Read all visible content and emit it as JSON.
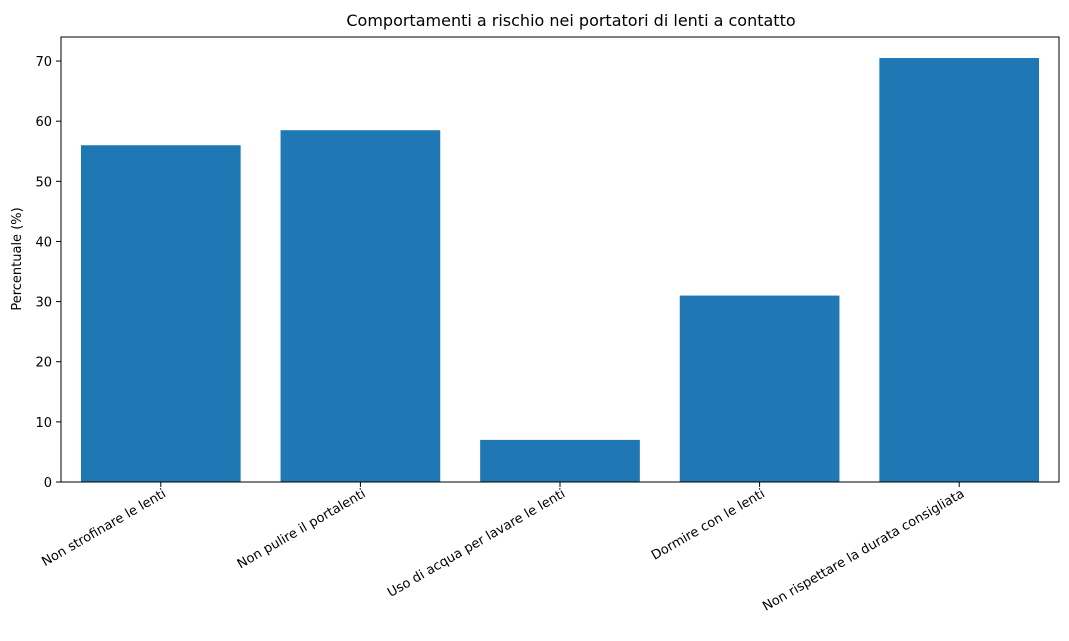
{
  "chart_data": {
    "type": "bar",
    "title": "Comportamenti a rischio nei portatori di lenti a contatto",
    "xlabel": "",
    "ylabel": "Percentuale (%)",
    "categories": [
      "Non strofinare le lenti",
      "Non pulire il portalenti",
      "Uso di acqua per lavare le lenti",
      "Dormire con le lenti",
      "Non rispettare la durata consigliata"
    ],
    "values": [
      56,
      58.5,
      7,
      31,
      70.5
    ],
    "ylim": [
      0,
      74
    ],
    "yticks": [
      0,
      10,
      20,
      30,
      40,
      50,
      60,
      70
    ],
    "grid": false,
    "bar_color": "#1f77b4"
  }
}
